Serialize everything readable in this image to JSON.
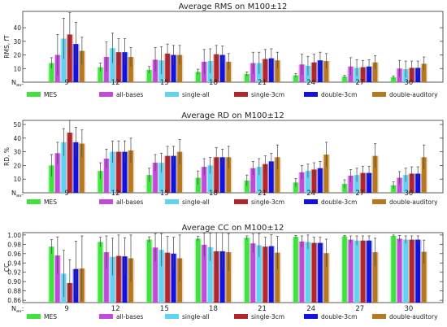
{
  "chart_data": [
    {
      "type": "bar",
      "title": "Average RMS on M100±12",
      "ylabel": "RMS, fT",
      "nlabel": "N",
      "nsub": "av",
      "ylim": [
        0,
        52
      ],
      "yticks": [
        10,
        20,
        30,
        40
      ],
      "ytick_labels": [
        "10",
        "20",
        "30",
        "40"
      ],
      "categories": [
        "9",
        "12",
        "15",
        "18",
        "21",
        "24",
        "27",
        "30"
      ],
      "series": [
        {
          "name": "MES",
          "color": "#3fe23f",
          "values": [
            14,
            11,
            9,
            7.5,
            6,
            5,
            4,
            3.5
          ],
          "err": [
            4,
            3,
            2.5,
            2,
            1.5,
            1.2,
            1,
            1
          ]
        },
        {
          "name": "all-bases",
          "color": "#c24ad8",
          "values": [
            20,
            18.5,
            16.5,
            15,
            14,
            13,
            11.5,
            10
          ],
          "err": [
            15,
            11,
            9,
            9,
            8,
            7.5,
            6.5,
            6
          ]
        },
        {
          "name": "single-all",
          "color": "#5fd4f2",
          "values": [
            32,
            25,
            16,
            15.5,
            14,
            12,
            10.5,
            9.5
          ],
          "err": [
            15,
            11,
            10,
            9,
            8,
            7,
            6,
            6
          ]
        },
        {
          "name": "single-3cm",
          "color": "#b5262b",
          "values": [
            35,
            22,
            21,
            20.5,
            17,
            14.5,
            11,
            10.5
          ],
          "err": [
            16,
            10,
            7,
            6.5,
            7,
            6,
            5,
            5
          ]
        },
        {
          "name": "double-3cm",
          "color": "#1212e0",
          "values": [
            28,
            22,
            20,
            20,
            17.5,
            16,
            11.5,
            10.5
          ],
          "err": [
            16,
            10,
            7,
            6.5,
            7,
            6,
            5,
            5
          ]
        },
        {
          "name": "double-auditory",
          "color": "#b7791f",
          "values": [
            23,
            18.5,
            20,
            15,
            16,
            15.5,
            14.5,
            13.5
          ],
          "err": [
            10,
            7,
            7,
            6,
            6,
            5.5,
            5,
            5
          ]
        }
      ]
    },
    {
      "type": "bar",
      "title": "Average RD on M100±12",
      "ylabel": "RD, %",
      "nlabel": "N",
      "nsub": "av",
      "ylim": [
        0,
        53
      ],
      "yticks": [
        10,
        20,
        30,
        40,
        50
      ],
      "ytick_labels": [
        "10",
        "20",
        "30",
        "40",
        "50"
      ],
      "categories": [
        "9",
        "12",
        "15",
        "18",
        "21",
        "24",
        "27",
        "30"
      ],
      "series": [
        {
          "name": "MES",
          "color": "#3fe23f",
          "values": [
            20,
            16,
            13,
            11,
            9,
            7.5,
            6.5,
            5.5
          ],
          "err": [
            8,
            6,
            5,
            5,
            4,
            3,
            3,
            2.5
          ]
        },
        {
          "name": "all-bases",
          "color": "#c24ad8",
          "values": [
            29,
            25,
            22,
            19,
            18,
            15,
            12.5,
            11
          ],
          "err": [
            8,
            7,
            6,
            6,
            5,
            5,
            4.5,
            4.5
          ]
        },
        {
          "name": "single-all",
          "color": "#5fd4f2",
          "values": [
            37,
            30,
            22,
            20,
            19,
            16,
            13,
            13
          ],
          "err": [
            10,
            8,
            7,
            6,
            6,
            5,
            5,
            5
          ]
        },
        {
          "name": "single-3cm",
          "color": "#b5262b",
          "values": [
            44,
            30,
            27,
            26,
            21,
            17,
            14.5,
            14
          ],
          "err": [
            11,
            8,
            7,
            7,
            6,
            5,
            5,
            5
          ]
        },
        {
          "name": "double-3cm",
          "color": "#1212e0",
          "values": [
            37,
            30,
            27,
            26,
            23,
            18,
            14.5,
            14
          ],
          "err": [
            11,
            8,
            7,
            6,
            6,
            5,
            5,
            5
          ]
        },
        {
          "name": "double-auditory",
          "color": "#b7791f",
          "values": [
            36,
            31,
            30,
            26,
            26,
            28,
            27,
            26
          ],
          "err": [
            10,
            9,
            9,
            8,
            9,
            9,
            9,
            9
          ]
        }
      ]
    },
    {
      "type": "bar",
      "title": "Average CC on M100±12",
      "ylabel": "CC",
      "nlabel": "N",
      "nsub": "av",
      "ylim": [
        0.855,
        1.005
      ],
      "yticks": [
        0.86,
        0.88,
        0.9,
        0.92,
        0.94,
        0.96,
        0.98,
        1.0
      ],
      "ytick_labels": [
        "0.86",
        "0.88",
        "0.90",
        "0.92",
        "0.94",
        "0.96",
        "0.98",
        "1.00"
      ],
      "categories": [
        "9",
        "12",
        "15",
        "18",
        "21",
        "24",
        "27",
        "30"
      ],
      "series": [
        {
          "name": "MES",
          "color": "#3fe23f",
          "values": [
            0.975,
            0.985,
            0.99,
            0.992,
            0.994,
            0.996,
            0.997,
            0.998
          ],
          "err": [
            0.015,
            0.01,
            0.006,
            0.005,
            0.004,
            0.003,
            0.002,
            0.002
          ]
        },
        {
          "name": "all-bases",
          "color": "#c24ad8",
          "values": [
            0.956,
            0.963,
            0.973,
            0.979,
            0.982,
            0.986,
            0.99,
            0.992
          ],
          "err": [
            0.04,
            0.035,
            0.03,
            0.025,
            0.02,
            0.012,
            0.008,
            0.007
          ]
        },
        {
          "name": "single-all",
          "color": "#5fd4f2",
          "values": [
            0.917,
            0.953,
            0.968,
            0.974,
            0.978,
            0.985,
            0.988,
            0.99
          ],
          "err": [
            0.05,
            0.04,
            0.035,
            0.03,
            0.025,
            0.015,
            0.01,
            0.008
          ]
        },
        {
          "name": "single-3cm",
          "color": "#b5262b",
          "values": [
            0.897,
            0.955,
            0.962,
            0.965,
            0.975,
            0.983,
            0.988,
            0.99
          ],
          "err": [
            0.05,
            0.045,
            0.035,
            0.04,
            0.02,
            0.012,
            0.01,
            0.008
          ]
        },
        {
          "name": "double-3cm",
          "color": "#1212e0",
          "values": [
            0.927,
            0.954,
            0.96,
            0.965,
            0.976,
            0.983,
            0.988,
            0.99
          ],
          "err": [
            0.06,
            0.04,
            0.035,
            0.04,
            0.025,
            0.012,
            0.01,
            0.008
          ]
        },
        {
          "name": "double-auditory",
          "color": "#b7791f",
          "values": [
            0.928,
            0.95,
            0.95,
            0.963,
            0.962,
            0.961,
            0.963,
            0.964
          ],
          "err": [
            0.07,
            0.05,
            0.05,
            0.04,
            0.035,
            0.03,
            0.03,
            0.025
          ]
        }
      ]
    }
  ]
}
